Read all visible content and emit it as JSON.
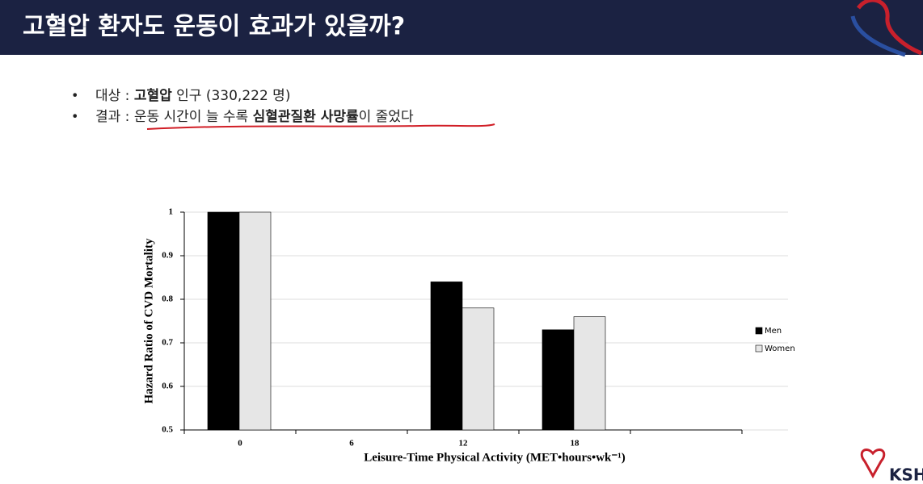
{
  "slide": {
    "title": "고혈압 환자도 운동이 효과가 있을까?",
    "bullets": [
      [
        "대상 : ",
        "고혈압",
        " 인구 (330,222 명)"
      ],
      [
        "결과 : ",
        "운동 시간이 늘 수록 ",
        "심혈관질환 사망률",
        "이 줄었다"
      ]
    ],
    "logo": "KSH"
  },
  "chart_data": {
    "type": "bar",
    "y_label": "Hazard Ratio of CVD Mortality",
    "x_label": "Leisure-Time Physical Activity (MET•hours•wk⁻¹)",
    "categories": [
      "0",
      "6",
      "12",
      "18"
    ],
    "series": [
      {
        "name": "Men",
        "color": "#000000",
        "values": [
          1,
          null,
          0.84,
          0.73
        ]
      },
      {
        "name": "Women",
        "color": "#e6e6e6",
        "values": [
          1,
          null,
          0.78,
          0.76
        ]
      }
    ],
    "ylim": [
      0.5,
      1
    ],
    "yticks": [
      0.5,
      0.6,
      0.7,
      0.8,
      0.9,
      1
    ],
    "grid": true
  }
}
